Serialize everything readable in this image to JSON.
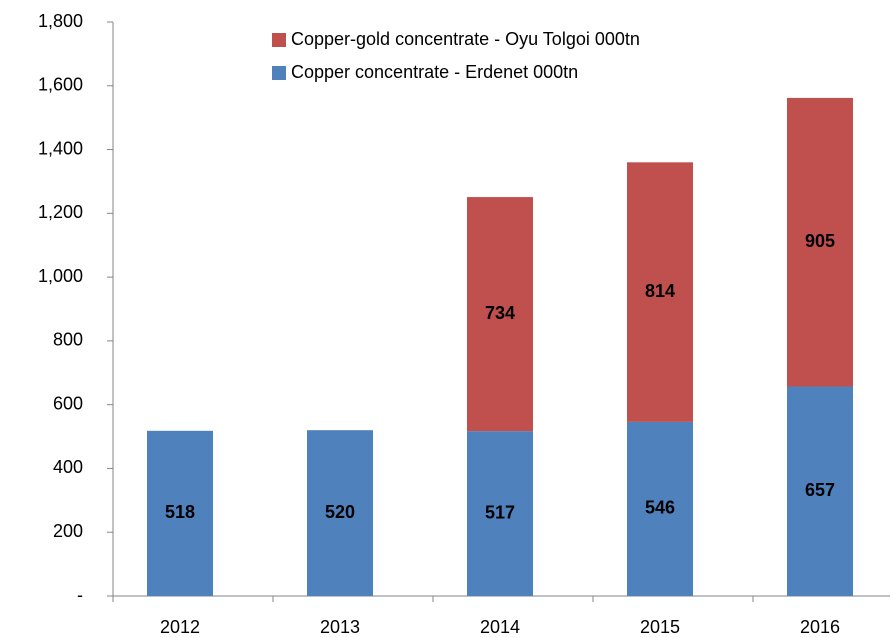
{
  "chart_data": {
    "type": "stacked_bar",
    "categories": [
      "2012",
      "2013",
      "2014",
      "2015",
      "2016"
    ],
    "series": [
      {
        "name": "Copper concentrate - Erdenet 000tn",
        "color": "#4f81bd",
        "values": [
          518,
          520,
          517,
          546,
          657
        ]
      },
      {
        "name": "Copper-gold concentrate - Oyu Tolgoi 000tn",
        "color": "#c0504d",
        "values": [
          null,
          null,
          734,
          814,
          905
        ]
      }
    ],
    "ylim": [
      0,
      1800
    ],
    "yticks": [
      {
        "value": 0,
        "label": "-"
      },
      200,
      400,
      600,
      800,
      {
        "value": 1000,
        "label": "1,000"
      },
      {
        "value": 1200,
        "label": "1,200"
      },
      {
        "value": 1400,
        "label": "1,400"
      },
      {
        "value": 1600,
        "label": "1,600"
      },
      {
        "value": 1800,
        "label": "1,800"
      }
    ],
    "grid": false
  }
}
